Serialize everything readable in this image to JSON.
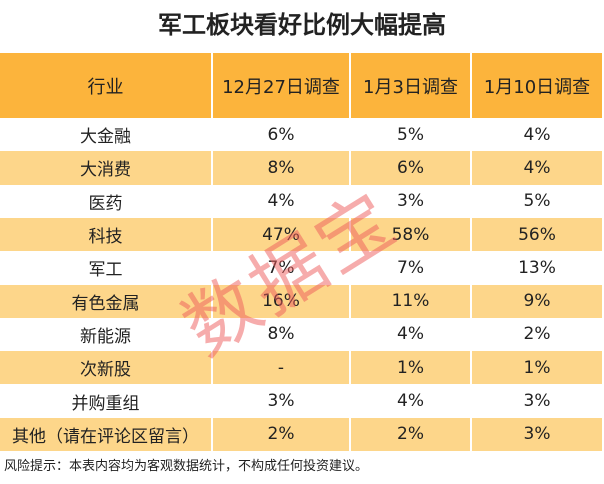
{
  "header": {
    "title": "军工板块看好比例大幅提高"
  },
  "table": {
    "columns": [
      "行业",
      "12月27日调查",
      "1月3日调查",
      "1月10日调查"
    ],
    "rows": [
      [
        "大金融",
        "6%",
        "5%",
        "4%"
      ],
      [
        "大消费",
        "8%",
        "6%",
        "4%"
      ],
      [
        "医药",
        "4%",
        "3%",
        "5%"
      ],
      [
        "科技",
        "47%",
        "58%",
        "56%"
      ],
      [
        "军工",
        "7%",
        "7%",
        "13%"
      ],
      [
        "有色金属",
        "16%",
        "11%",
        "9%"
      ],
      [
        "新能源",
        "8%",
        "4%",
        "2%"
      ],
      [
        "次新股",
        "-",
        "1%",
        "1%"
      ],
      [
        "并购重组",
        "3%",
        "4%",
        "3%"
      ],
      [
        "其他（请在评论区留言）",
        "2%",
        "2%",
        "3%"
      ]
    ]
  },
  "footer": {
    "note": "风险提示：本表内容均为客观数据统计，不构成任何投资建议。"
  },
  "watermark": "数据宝"
}
